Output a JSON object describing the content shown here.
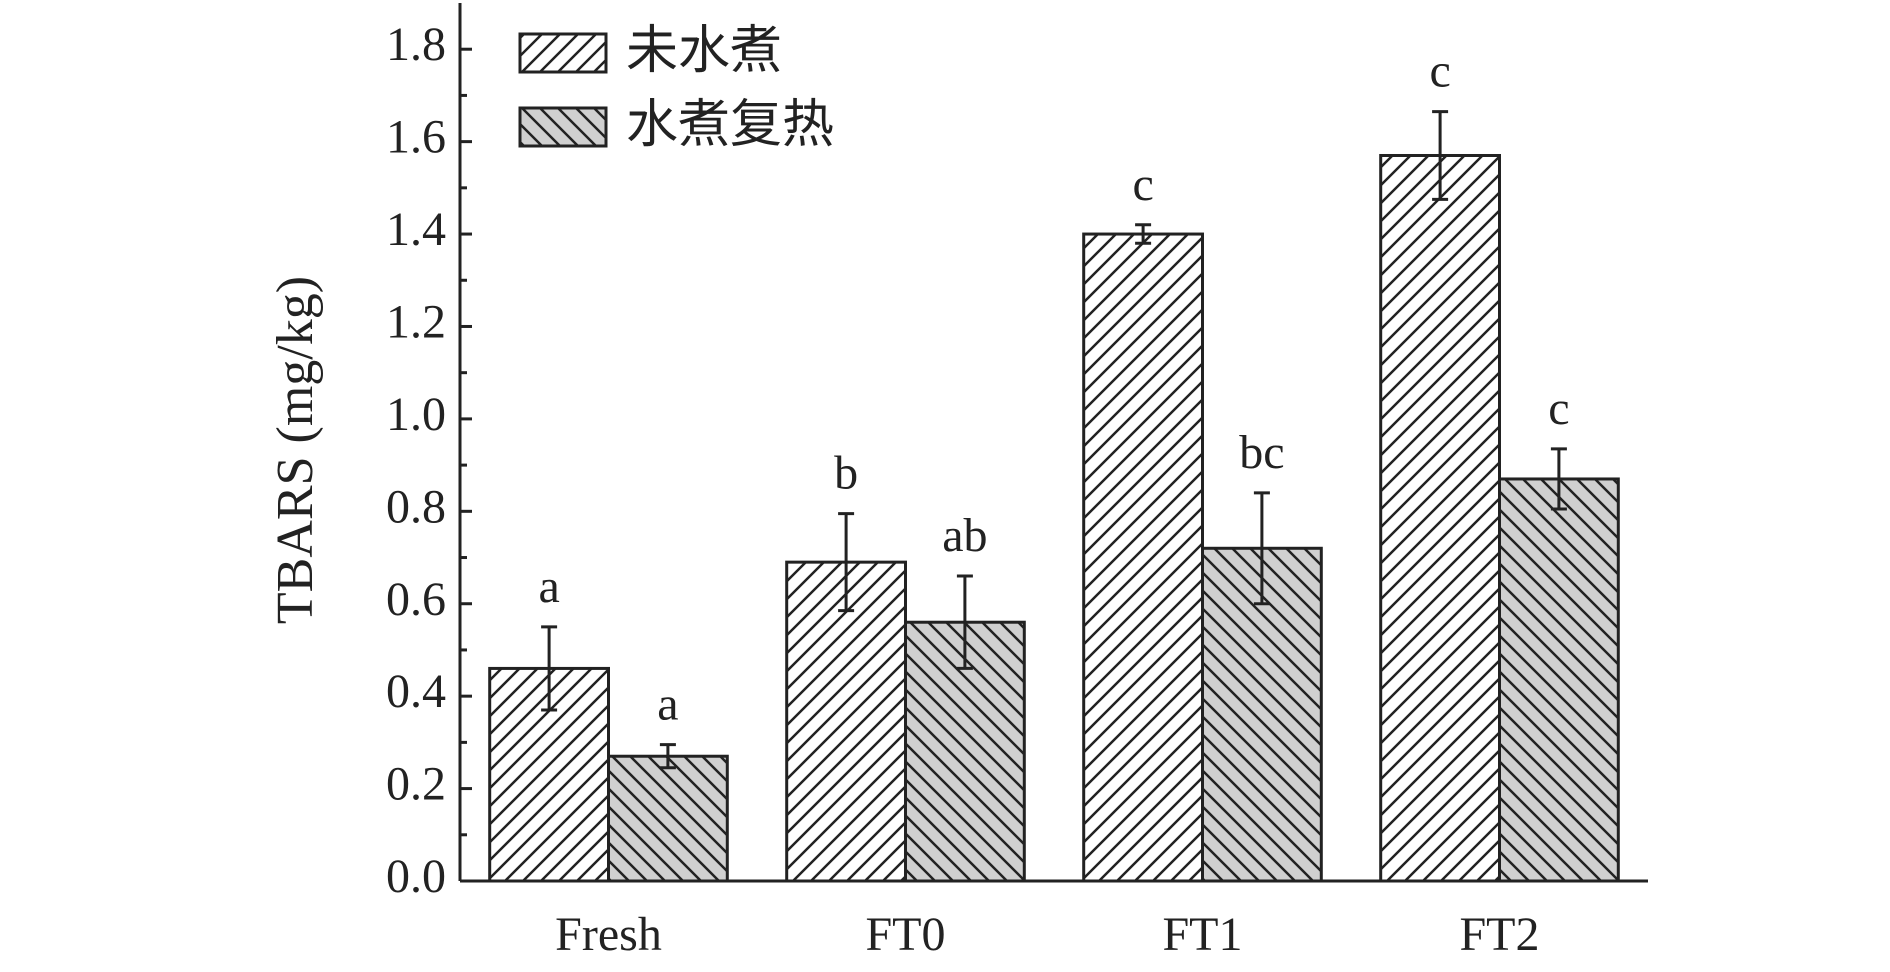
{
  "chart_data": {
    "type": "bar",
    "ylabel": "TBARS (mg/kg)",
    "categories": [
      "Fresh",
      "FT0",
      "FT1",
      "FT2"
    ],
    "series": [
      {
        "name": "未水煮",
        "color": "#ffffff",
        "hatch": "/",
        "values": [
          0.46,
          0.69,
          1.4,
          1.57
        ],
        "errors": [
          0.09,
          0.105,
          0.02,
          0.095
        ],
        "annotations": [
          "a",
          "b",
          "c",
          "c"
        ]
      },
      {
        "name": "水煮复热",
        "color": "#d0d0d0",
        "hatch": "\\",
        "values": [
          0.27,
          0.56,
          0.72,
          0.87
        ],
        "errors": [
          0.025,
          0.1,
          0.12,
          0.065
        ],
        "annotations": [
          "a",
          "ab",
          "bc",
          "c"
        ]
      }
    ],
    "ylim": [
      0,
      1.9
    ],
    "yticks": [
      {
        "value": 0,
        "label": "0.0"
      },
      0.2,
      0.4,
      0.6,
      0.8,
      {
        "value": 1,
        "label": "1.0"
      },
      1.2,
      1.4,
      1.6,
      1.8
    ],
    "yminorticks": [
      0.1,
      0.3,
      0.5,
      0.7,
      0.9,
      1.1,
      1.3,
      1.5,
      1.7
    ],
    "legend": "upper left"
  }
}
